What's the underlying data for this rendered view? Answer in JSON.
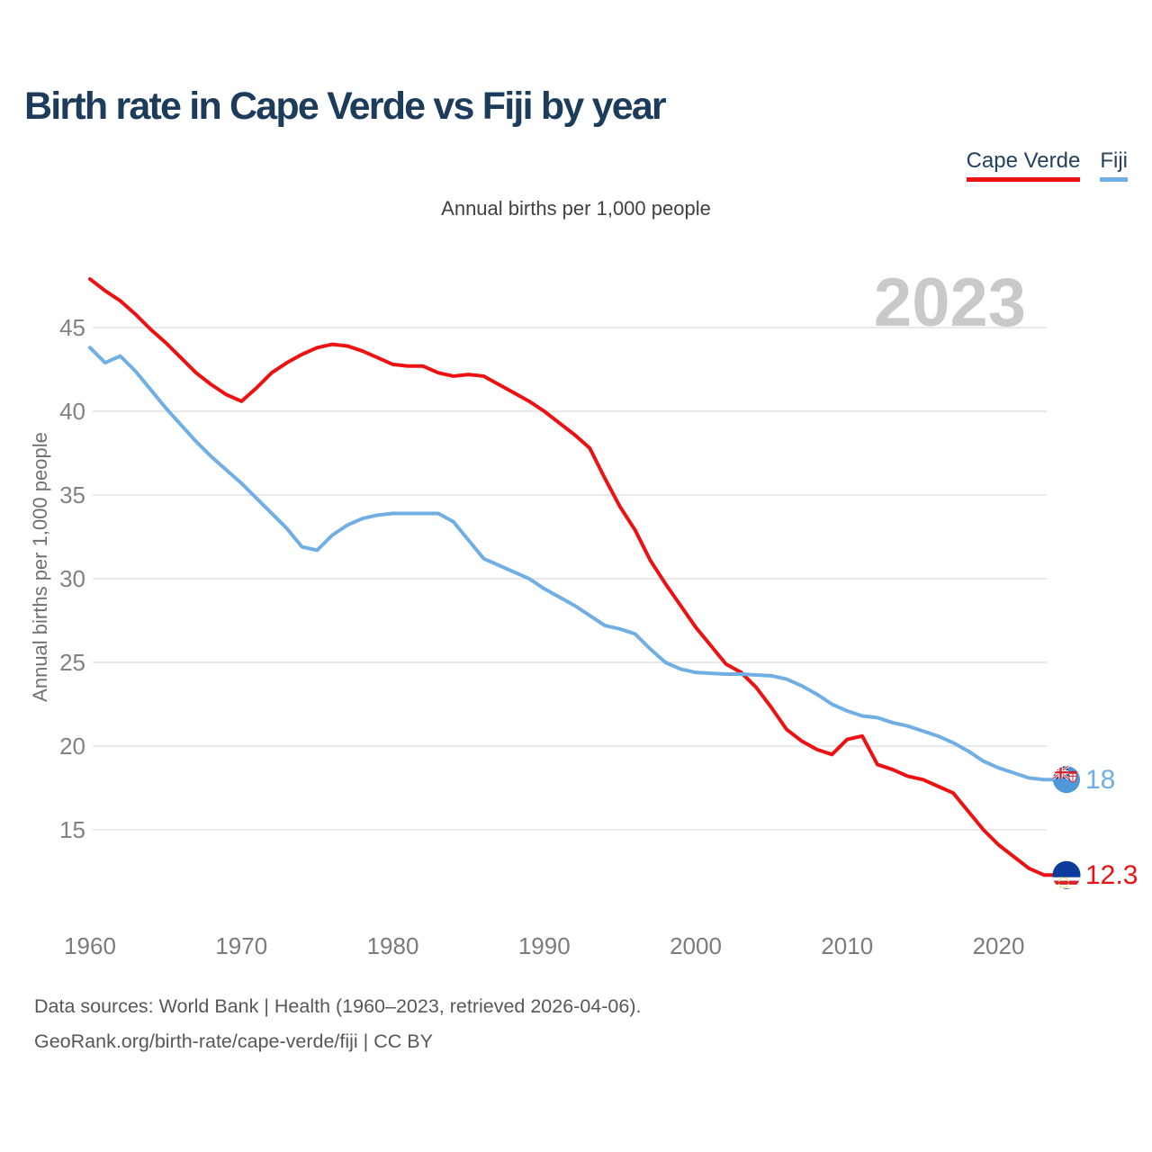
{
  "page": {
    "title": "Birth rate in Cape Verde vs Fiji by year",
    "watermark_year": "2023",
    "footer_line1": "Data sources: World Bank | Health (1960–2023, retrieved 2026-04-06).",
    "footer_line2": "GeoRank.org/birth-rate/cape-verde/fiji | CC BY"
  },
  "legend": [
    {
      "label": "Cape Verde",
      "color": "#ee1111"
    },
    {
      "label": "Fiji",
      "color": "#70aee4"
    }
  ],
  "chart_data": {
    "type": "line",
    "title": "Annual births per 1,000 people",
    "xlabel": "",
    "ylabel": "Annual births per 1,000 people",
    "grid": true,
    "legend_position": "top-right",
    "xlim": [
      1960,
      2023
    ],
    "ylim": [
      11.5,
      48.5
    ],
    "yticks": [
      15,
      20,
      25,
      30,
      35,
      40,
      45
    ],
    "xticks": [
      1960,
      1970,
      1980,
      1990,
      2000,
      2010,
      2020
    ],
    "x": [
      1960,
      1961,
      1962,
      1963,
      1964,
      1965,
      1966,
      1967,
      1968,
      1969,
      1970,
      1971,
      1972,
      1973,
      1974,
      1975,
      1976,
      1977,
      1978,
      1979,
      1980,
      1981,
      1982,
      1983,
      1984,
      1985,
      1986,
      1987,
      1988,
      1989,
      1990,
      1991,
      1992,
      1993,
      1994,
      1995,
      1996,
      1997,
      1998,
      1999,
      2000,
      2001,
      2002,
      2003,
      2004,
      2005,
      2006,
      2007,
      2008,
      2009,
      2010,
      2011,
      2012,
      2013,
      2014,
      2015,
      2016,
      2017,
      2018,
      2019,
      2020,
      2021,
      2022,
      2023
    ],
    "series": [
      {
        "name": "Cape Verde",
        "color": "#ee1111",
        "end_label": "12.3",
        "end_value": 12.3,
        "values": [
          47.9,
          47.2,
          46.6,
          45.8,
          44.9,
          44.1,
          43.2,
          42.3,
          41.6,
          41.0,
          40.6,
          41.4,
          42.3,
          42.9,
          43.4,
          43.8,
          44.0,
          43.9,
          43.6,
          43.2,
          42.8,
          42.7,
          42.7,
          42.3,
          42.1,
          42.2,
          42.1,
          41.6,
          41.1,
          40.6,
          40.0,
          39.3,
          38.6,
          37.8,
          36.0,
          34.3,
          32.9,
          31.1,
          29.7,
          28.4,
          27.1,
          26.0,
          24.9,
          24.4,
          23.5,
          22.3,
          21.0,
          20.3,
          19.8,
          19.5,
          20.4,
          20.6,
          18.9,
          18.6,
          18.2,
          18.0,
          17.6,
          17.2,
          16.1,
          15.0,
          14.1,
          13.4,
          12.7,
          12.3
        ]
      },
      {
        "name": "Fiji",
        "color": "#70aee4",
        "end_label": "18",
        "end_value": 18,
        "values": [
          43.8,
          42.9,
          43.3,
          42.4,
          41.3,
          40.2,
          39.2,
          38.2,
          37.3,
          36.5,
          35.7,
          34.8,
          33.9,
          33.0,
          31.9,
          31.7,
          32.6,
          33.2,
          33.6,
          33.8,
          33.9,
          33.9,
          33.9,
          33.9,
          33.4,
          32.3,
          31.2,
          30.8,
          30.4,
          30.0,
          29.4,
          28.9,
          28.4,
          27.8,
          27.2,
          27.0,
          26.7,
          25.8,
          25.0,
          24.6,
          24.4,
          24.35,
          24.3,
          24.3,
          24.25,
          24.2,
          24.0,
          23.6,
          23.1,
          22.5,
          22.1,
          21.8,
          21.7,
          21.4,
          21.2,
          20.9,
          20.6,
          20.2,
          19.7,
          19.1,
          18.7,
          18.4,
          18.1,
          18.0
        ]
      }
    ]
  }
}
